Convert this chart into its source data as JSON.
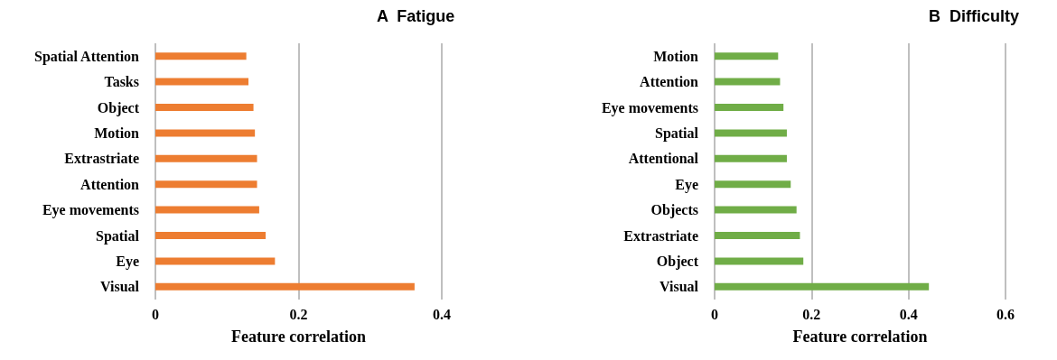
{
  "chart_data": [
    {
      "type": "bar",
      "orientation": "horizontal",
      "title": "A  Fatigue",
      "xlabel": "Feature correlation",
      "categories": [
        "Spatial Attention",
        "Tasks",
        "Object",
        "Motion",
        "Extrastriate",
        "Attention",
        "Eye movements",
        "Spatial",
        "Eye",
        "Visual"
      ],
      "values": [
        0.127,
        0.13,
        0.137,
        0.139,
        0.142,
        0.142,
        0.145,
        0.154,
        0.167,
        0.362
      ],
      "color": "#ed7d31",
      "xlim": [
        0,
        0.4
      ],
      "xticks": [
        0,
        0.2,
        0.4
      ],
      "grid": "x"
    },
    {
      "type": "bar",
      "orientation": "horizontal",
      "title": "B  Difficulty",
      "xlabel": "Feature correlation",
      "categories": [
        "Motion",
        "Attention",
        "Eye movements",
        "Spatial",
        "Attentional",
        "Eye",
        "Objects",
        "Extrastriate",
        "Object",
        "Visual"
      ],
      "values": [
        0.131,
        0.135,
        0.142,
        0.149,
        0.149,
        0.157,
        0.169,
        0.176,
        0.183,
        0.442
      ],
      "color": "#70ad47",
      "xlim": [
        0,
        0.6
      ],
      "xticks": [
        0,
        0.2,
        0.4,
        0.6
      ],
      "grid": "x"
    }
  ]
}
